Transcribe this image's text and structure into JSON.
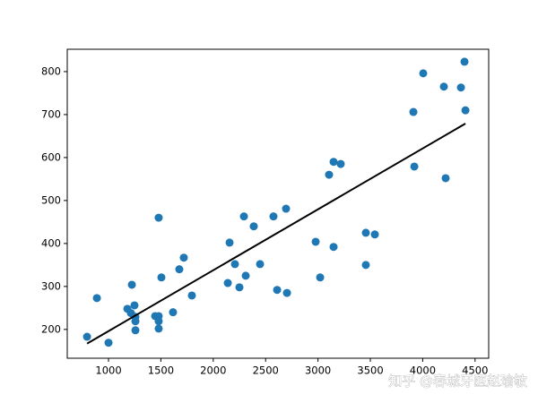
{
  "chart_data": {
    "type": "scatter",
    "series": [
      {
        "color": "#1f77b4",
        "x": [
          795,
          889,
          1000,
          1180,
          1214,
          1223,
          1248,
          1257,
          1257,
          1257,
          1445,
          1479,
          1479,
          1479,
          1479,
          1505,
          1616,
          1676,
          1719,
          1796,
          2139,
          2156,
          2207,
          2250,
          2293,
          2310,
          2387,
          2447,
          2575,
          2610,
          2695,
          2704,
          2978,
          3021,
          3106,
          3149,
          3149,
          3217,
          3457,
          3457,
          3543,
          3911,
          3920,
          4005,
          4202,
          4219,
          4365,
          4399,
          4408
        ],
        "values": [
          183,
          273,
          169,
          248,
          238,
          304,
          256,
          229,
          219,
          198,
          231,
          231,
          219,
          202,
          460,
          321,
          240,
          340,
          367,
          279,
          308,
          402,
          352,
          298,
          463,
          325,
          440,
          352,
          463,
          292,
          481,
          285,
          404,
          321,
          560,
          590,
          392,
          585,
          425,
          350,
          421,
          706,
          579,
          796,
          765,
          552,
          763,
          823,
          710
        ]
      }
    ],
    "fit_line": {
      "color": "#000000",
      "x": [
        795,
        4408
      ],
      "values": [
        167,
        679
      ]
    },
    "xlim": [
      606,
      4630
    ],
    "ylim": [
      133,
      852
    ],
    "xticks": [
      1000,
      1500,
      2000,
      2500,
      3000,
      3500,
      4000,
      4500
    ],
    "yticks": [
      200,
      300,
      400,
      500,
      600,
      700,
      800
    ],
    "grid": false
  },
  "watermark": "知乎 @春城牙医赵瑜敏"
}
